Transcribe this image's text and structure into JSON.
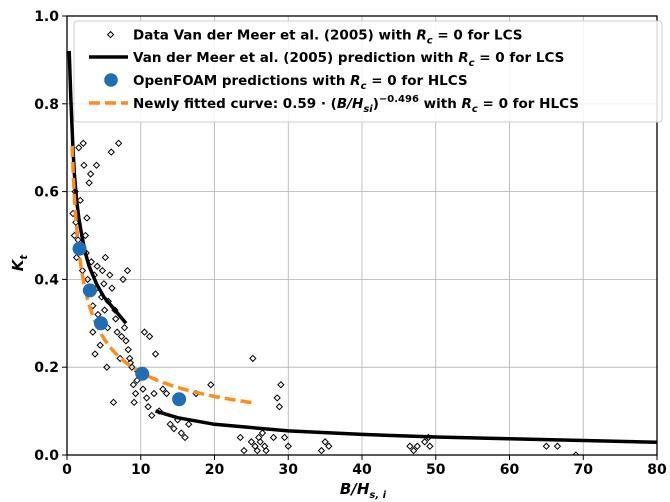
{
  "chart_data": {
    "type": "scatter",
    "xlabel": "B/H_{s,i}",
    "ylabel": "K_t",
    "xlim": [
      0,
      80
    ],
    "ylim": [
      0,
      1.0
    ],
    "xticks": [
      0,
      10,
      20,
      30,
      40,
      50,
      60,
      70,
      80
    ],
    "yticks": [
      0.0,
      0.2,
      0.4,
      0.6,
      0.8,
      1.0
    ],
    "grid": true,
    "legend_position": "top",
    "series": [
      {
        "name": "Data Van der Meer et al. (2005) with R_c = 0 for LCS",
        "kind": "scatter-open-diamond",
        "color": "#000000",
        "points": [
          [
            0.8,
            0.55
          ],
          [
            1.0,
            0.5
          ],
          [
            1.1,
            0.6
          ],
          [
            1.2,
            0.53
          ],
          [
            1.3,
            0.45
          ],
          [
            1.5,
            0.49
          ],
          [
            1.6,
            0.7
          ],
          [
            1.8,
            0.58
          ],
          [
            2.0,
            0.47
          ],
          [
            2.1,
            0.42
          ],
          [
            2.2,
            0.71
          ],
          [
            2.3,
            0.66
          ],
          [
            2.5,
            0.5
          ],
          [
            2.6,
            0.46
          ],
          [
            2.7,
            0.54
          ],
          [
            2.8,
            0.4
          ],
          [
            3.0,
            0.62
          ],
          [
            3.0,
            0.37
          ],
          [
            3.2,
            0.64
          ],
          [
            3.3,
            0.44
          ],
          [
            3.5,
            0.34
          ],
          [
            3.5,
            0.28
          ],
          [
            3.7,
            0.41
          ],
          [
            3.8,
            0.23
          ],
          [
            4.0,
            0.66
          ],
          [
            4.0,
            0.38
          ],
          [
            4.1,
            0.43
          ],
          [
            4.2,
            0.32
          ],
          [
            4.4,
            0.3
          ],
          [
            4.5,
            0.25
          ],
          [
            4.7,
            0.36
          ],
          [
            4.8,
            0.42
          ],
          [
            5.0,
            0.39
          ],
          [
            5.1,
            0.33
          ],
          [
            5.2,
            0.45
          ],
          [
            5.4,
            0.2
          ],
          [
            5.5,
            0.29
          ],
          [
            5.6,
            0.35
          ],
          [
            5.8,
            0.41
          ],
          [
            6.0,
            0.69
          ],
          [
            6.1,
            0.38
          ],
          [
            6.3,
            0.12
          ],
          [
            6.5,
            0.33
          ],
          [
            6.6,
            0.31
          ],
          [
            6.8,
            0.28
          ],
          [
            7.0,
            0.71
          ],
          [
            7.2,
            0.22
          ],
          [
            7.4,
            0.27
          ],
          [
            7.6,
            0.4
          ],
          [
            7.8,
            0.29
          ],
          [
            8.0,
            0.26
          ],
          [
            8.2,
            0.42
          ],
          [
            8.3,
            0.24
          ],
          [
            8.5,
            0.22
          ],
          [
            8.6,
            0.21
          ],
          [
            8.8,
            0.2
          ],
          [
            9.0,
            0.16
          ],
          [
            9.1,
            0.12
          ],
          [
            9.3,
            0.14
          ],
          [
            9.5,
            0.17
          ],
          [
            9.6,
            0.19
          ],
          [
            10.0,
            0.18
          ],
          [
            10.3,
            0.15
          ],
          [
            10.5,
            0.28
          ],
          [
            10.8,
            0.13
          ],
          [
            11.0,
            0.11
          ],
          [
            11.2,
            0.27
          ],
          [
            11.5,
            0.09
          ],
          [
            11.8,
            0.14
          ],
          [
            12.0,
            0.23
          ],
          [
            12.5,
            0.1
          ],
          [
            13.0,
            0.15
          ],
          [
            13.5,
            0.14
          ],
          [
            14.0,
            0.07
          ],
          [
            14.5,
            0.06
          ],
          [
            15.0,
            0.08
          ],
          [
            15.5,
            0.05
          ],
          [
            16.0,
            0.04
          ],
          [
            16.5,
            0.07
          ],
          [
            17.5,
            0.14
          ],
          [
            19.5,
            0.16
          ],
          [
            23.5,
            0.04
          ],
          [
            24.0,
            0.01
          ],
          [
            25.0,
            0.03
          ],
          [
            25.2,
            0.22
          ],
          [
            25.5,
            0.02
          ],
          [
            25.8,
            0.01
          ],
          [
            26.0,
            0.04
          ],
          [
            26.2,
            0.03
          ],
          [
            26.5,
            0.05
          ],
          [
            26.8,
            0.02
          ],
          [
            27.0,
            0.01
          ],
          [
            28.0,
            0.04
          ],
          [
            28.5,
            0.13
          ],
          [
            28.8,
            0.11
          ],
          [
            29.0,
            0.16
          ],
          [
            29.5,
            0.04
          ],
          [
            30.0,
            0.02
          ],
          [
            34.5,
            0.01
          ],
          [
            35.0,
            0.03
          ],
          [
            35.5,
            0.02
          ],
          [
            46.5,
            0.02
          ],
          [
            47.0,
            0.01
          ],
          [
            47.5,
            0.02
          ],
          [
            48.5,
            0.03
          ],
          [
            49.0,
            0.04
          ],
          [
            49.2,
            0.02
          ],
          [
            65.0,
            0.02
          ],
          [
            66.5,
            0.02
          ],
          [
            69.0,
            0.0
          ]
        ]
      },
      {
        "name": "Van der Meer et al. (2005) prediction with R_c = 0 for LCS",
        "kind": "line-solid",
        "color": "#000000",
        "segments": [
          [
            [
              0.3,
              0.92
            ],
            [
              0.5,
              0.82
            ],
            [
              0.8,
              0.7
            ],
            [
              1.0,
              0.64
            ],
            [
              1.3,
              0.58
            ],
            [
              1.6,
              0.54
            ],
            [
              2.0,
              0.5
            ],
            [
              2.5,
              0.46
            ],
            [
              3.0,
              0.43
            ],
            [
              4.0,
              0.39
            ],
            [
              5.0,
              0.36
            ],
            [
              6.0,
              0.34
            ],
            [
              7.0,
              0.32
            ],
            [
              8.0,
              0.3
            ]
          ],
          [
            [
              12.0,
              0.1
            ],
            [
              15.0,
              0.085
            ],
            [
              20.0,
              0.07
            ],
            [
              30.0,
              0.055
            ],
            [
              40.0,
              0.047
            ],
            [
              50.0,
              0.041
            ],
            [
              60.0,
              0.037
            ],
            [
              70.0,
              0.033
            ],
            [
              80.0,
              0.029
            ]
          ]
        ]
      },
      {
        "name": "OpenFOAM predictions with R_c = 0 for HLCS",
        "kind": "scatter-filled-circle",
        "color": "#1f6db5",
        "points": [
          [
            1.7,
            0.47
          ],
          [
            3.1,
            0.375
          ],
          [
            4.6,
            0.3
          ],
          [
            10.2,
            0.185
          ],
          [
            15.2,
            0.127
          ]
        ]
      },
      {
        "name": "Newly fitted curve: 0.59·(B/H_si)^−0.496 with R_c = 0 for HLCS",
        "kind": "line-dashed",
        "color": "#ff8c1a",
        "function": {
          "a": 0.59,
          "b": -0.496,
          "xmin": 0.7,
          "xmax": 25
        }
      }
    ],
    "legend_entries": [
      {
        "prefix": "Data Van der Meer et al. (2005) with ",
        "sym": "R",
        "sub": "c",
        "suffix": " = 0 for LCS"
      },
      {
        "prefix": "Van der Meer et al. (2005) prediction with ",
        "sym": "R",
        "sub": "c",
        "suffix": " = 0 for LCS"
      },
      {
        "prefix": "OpenFOAM predictions with ",
        "sym": "R",
        "sub": "c",
        "suffix": " = 0 for HLCS"
      },
      {
        "prefix": "Newly fitted curve: 0.59 · (",
        "sym": "B/H",
        "sub": "si",
        "mid": ")",
        "sup": "−0.496",
        "mid2": " with ",
        "sym2": "R",
        "sub2": "c",
        "suffix": " = 0 for HLCS"
      }
    ],
    "axis_text": {
      "x_main": "B/H",
      "x_sub": "s, i",
      "y_main": "K",
      "y_sub": "t"
    }
  }
}
